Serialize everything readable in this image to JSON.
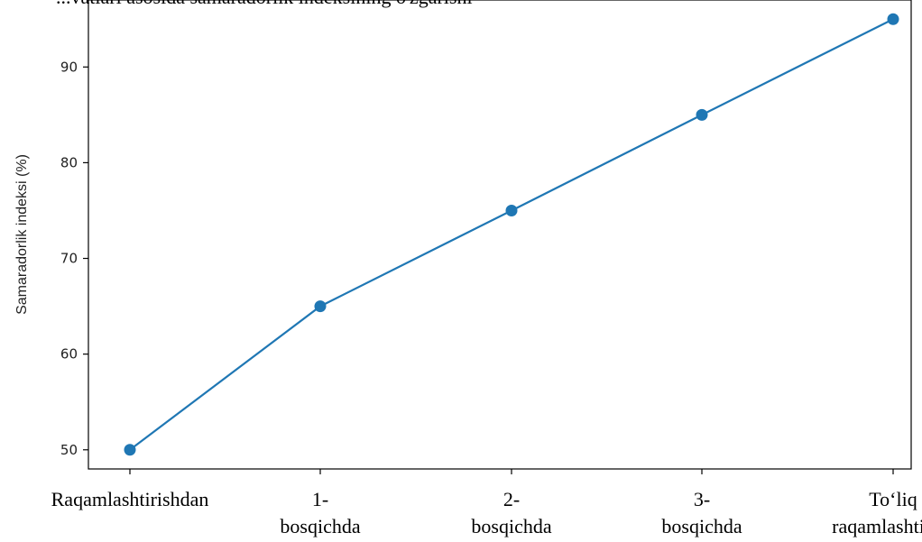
{
  "header": {
    "partial_text": "...vatlari asosida samaradorlik indeksining o'zgarishi"
  },
  "chart_data": {
    "type": "line",
    "title": "",
    "xlabel": "",
    "ylabel": "Samaradorlik indeksi (%)",
    "categories": [
      [
        "Raqamlashtirishdan"
      ],
      [
        "1-",
        "bosqichda"
      ],
      [
        "2-",
        "bosqichda"
      ],
      [
        "3-",
        "bosqichda"
      ],
      [
        "To‘liq",
        "raqamlashtirish"
      ]
    ],
    "values": [
      50,
      65,
      75,
      85,
      95
    ],
    "ylim": [
      48,
      97
    ],
    "yticks": [
      50,
      60,
      70,
      80,
      90
    ],
    "grid": false,
    "color": "#1f77b4"
  }
}
